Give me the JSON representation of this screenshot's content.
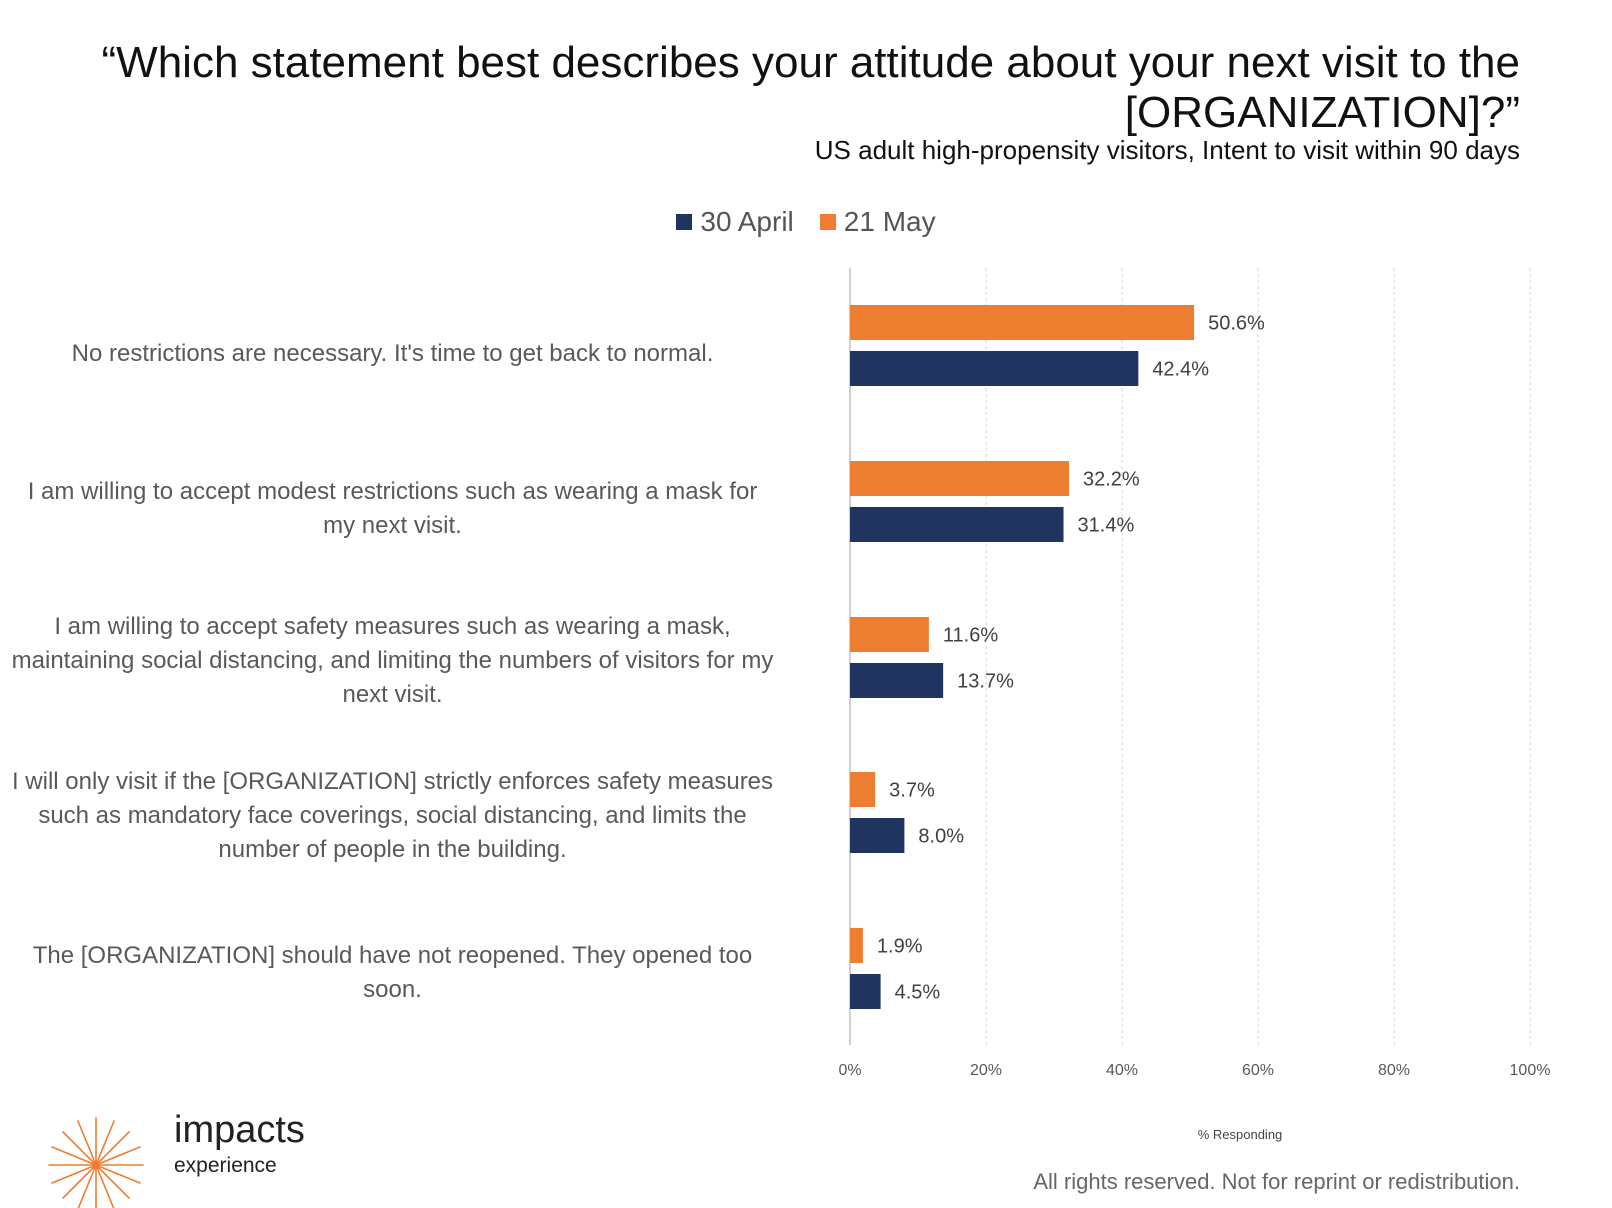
{
  "header": {
    "title": "“Which statement best describes your attitude about your next visit to the [ORGANIZATION]?”",
    "subtitle": "US adult high-propensity visitors, Intent to visit within 90 days"
  },
  "legend": {
    "items": [
      {
        "label": "30 April",
        "color": "#1f3560"
      },
      {
        "label": "21 May",
        "color": "#ed7d31"
      }
    ]
  },
  "chart_data": {
    "type": "bar",
    "orientation": "horizontal",
    "categories": [
      "No restrictions are necessary. It's time to get back to normal.",
      "I am willing to accept modest restrictions such as wearing a mask for my next visit.",
      "I am willing to accept safety measures such as wearing a mask, maintaining social distancing, and limiting the numbers of visitors for my next visit.",
      "I will only visit if the [ORGANIZATION] strictly enforces  safety measures such as mandatory face coverings, social distancing, and limits the number of people in the building.",
      "The [ORGANIZATION] should have not reopened. They opened too soon."
    ],
    "series": [
      {
        "name": "21 May",
        "color": "#ed7d31",
        "values": [
          50.6,
          32.2,
          11.6,
          3.7,
          1.9
        ],
        "labels": [
          "50.6%",
          "32.2%",
          "11.6%",
          "3.7%",
          "1.9%"
        ]
      },
      {
        "name": "30 April",
        "color": "#1f3560",
        "values": [
          42.4,
          31.4,
          13.7,
          8.0,
          4.5
        ],
        "labels": [
          "42.4%",
          "31.4%",
          "13.7%",
          "8.0%",
          "4.5%"
        ]
      }
    ],
    "xlabel": "% Responding",
    "xlim": [
      0,
      100
    ],
    "xticks": [
      "0%",
      "20%",
      "40%",
      "60%",
      "80%",
      "100%"
    ],
    "grid": "vertical dashed",
    "legend_position": "top"
  },
  "brand": {
    "name": "impacts",
    "tagline": "experience",
    "color": "#ed7d31"
  },
  "footer": {
    "text": "All rights reserved. Not for reprint or redistribution."
  }
}
